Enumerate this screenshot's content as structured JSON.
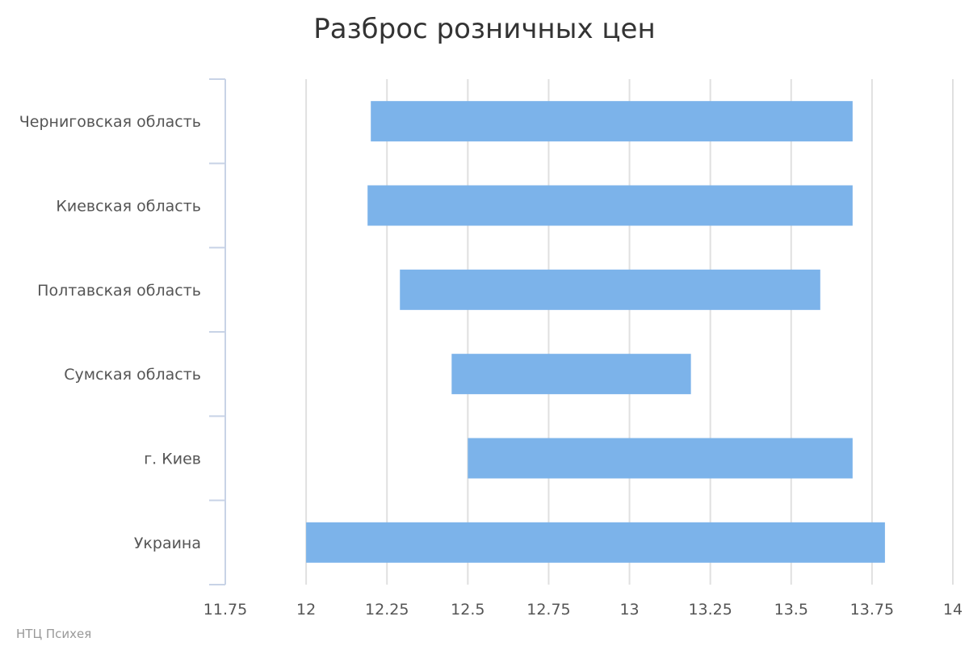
{
  "chart_data": {
    "type": "bar",
    "orientation": "horizontal",
    "subtype": "range",
    "title": "Разброс розничных цен",
    "credit": "НТЦ Психея",
    "categories": [
      "Черниговская область",
      "Киевская область",
      "Полтавская область",
      "Сумская область",
      "г. Киев",
      "Украина"
    ],
    "series": [
      {
        "low": [
          12.2,
          12.19,
          12.29,
          12.45,
          12.5,
          12.0
        ],
        "high": [
          13.69,
          13.69,
          13.59,
          13.19,
          13.69,
          13.79
        ]
      }
    ],
    "xlim": [
      11.75,
      14
    ],
    "xticks": [
      "11.75",
      "12",
      "12.25",
      "12.5",
      "12.75",
      "13",
      "13.25",
      "13.5",
      "13.75",
      "14"
    ],
    "grid": true,
    "bar_color": "#7cb3ea"
  }
}
